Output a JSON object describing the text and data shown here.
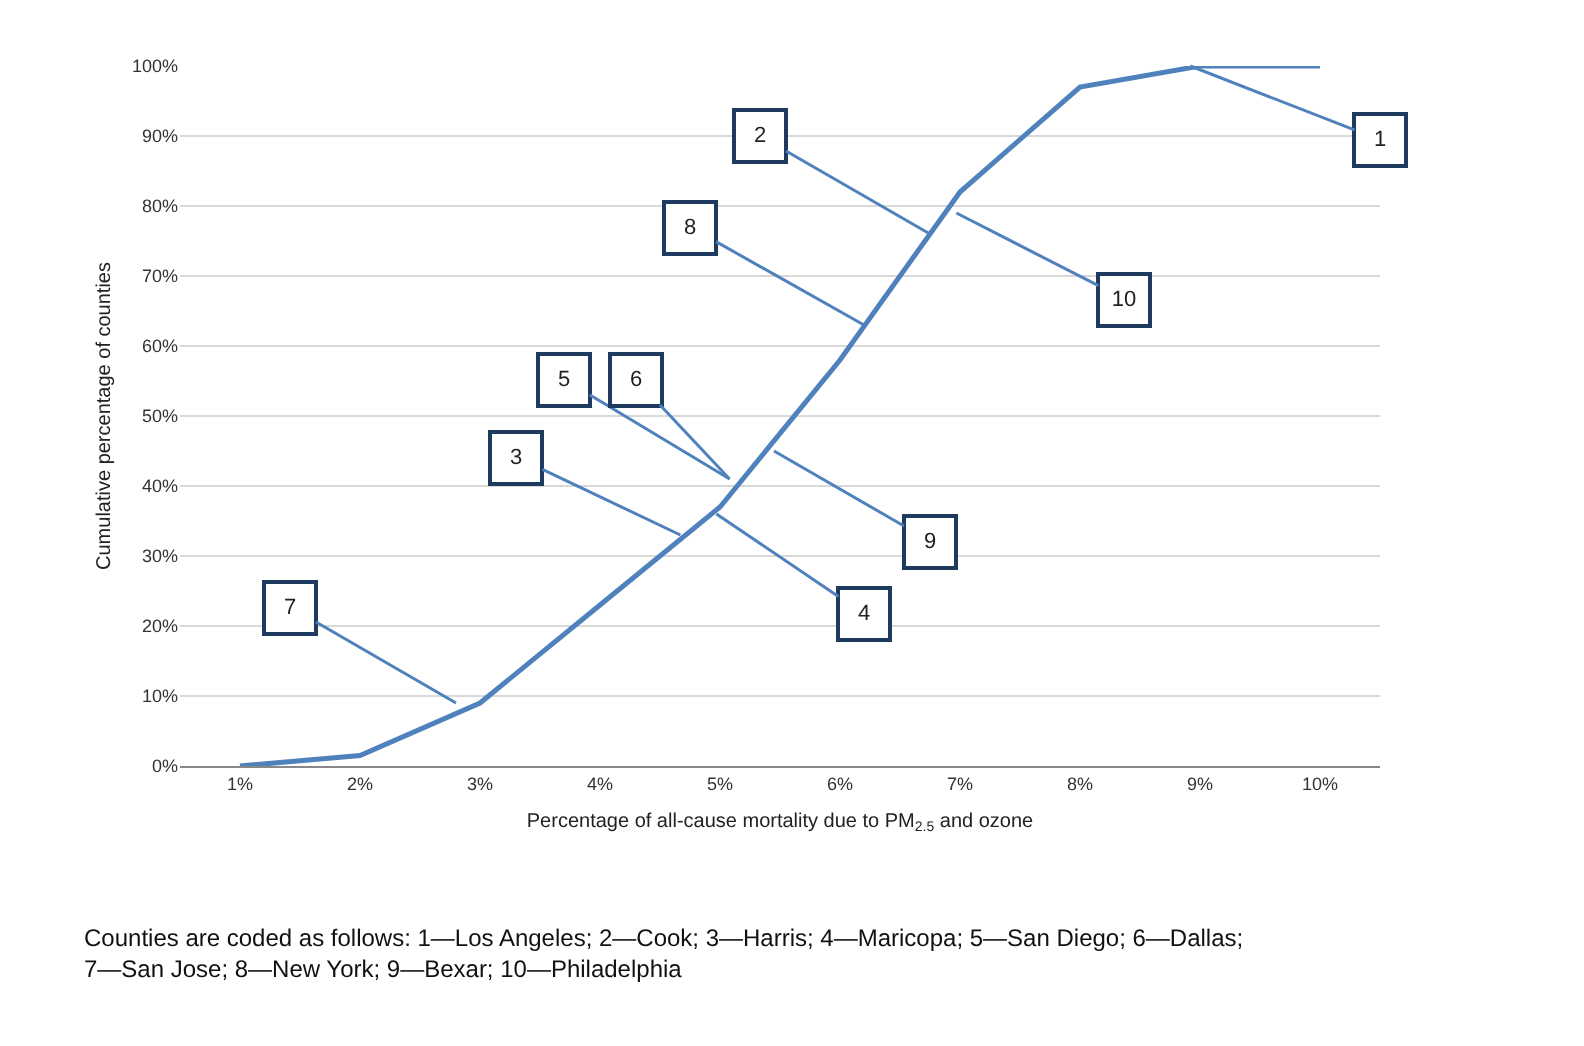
{
  "chart_data": {
    "type": "line",
    "xlabel": "Percentage of all-cause mortality due to PM$_{2.5}$ and ozone",
    "ylabel": "Cumulative percentage of counties",
    "x": [
      1,
      2,
      3,
      4,
      5,
      6,
      7,
      8,
      9,
      10
    ],
    "series": [
      {
        "color": "#4f81bd",
        "values": [
          0,
          1.5,
          9,
          23,
          37,
          58,
          82,
          97,
          100,
          100
        ]
      }
    ],
    "xlim": [
      0.5,
      10.5
    ],
    "xticks": [
      {
        "value": 1,
        "label": "1%"
      },
      {
        "value": 2,
        "label": "2%"
      },
      {
        "value": 3,
        "label": "3%"
      },
      {
        "value": 4,
        "label": "4%"
      },
      {
        "value": 5,
        "label": "5%"
      },
      {
        "value": 6,
        "label": "6%"
      },
      {
        "value": 7,
        "label": "7%"
      },
      {
        "value": 8,
        "label": "8%"
      },
      {
        "value": 9,
        "label": "9%"
      },
      {
        "value": 10,
        "label": "10%"
      }
    ],
    "ylim": [
      0,
      100
    ],
    "yticks": [
      {
        "value": 0,
        "label": "0%"
      },
      {
        "value": 10,
        "label": "10%"
      },
      {
        "value": 20,
        "label": "20%"
      },
      {
        "value": 30,
        "label": "30%"
      },
      {
        "value": 40,
        "label": "40%"
      },
      {
        "value": 50,
        "label": "50%"
      },
      {
        "value": 60,
        "label": "60%"
      },
      {
        "value": 70,
        "label": "70%"
      },
      {
        "value": 80,
        "label": "80%"
      },
      {
        "value": 90,
        "label": "90%"
      },
      {
        "value": 100,
        "label": "100%"
      }
    ],
    "grid": "y",
    "legend": false,
    "marker": "none",
    "line_style": "solid",
    "annotations": [
      {
        "text": "1",
        "x": 8.92,
        "y": 100
      },
      {
        "text": "2",
        "x": 6.75,
        "y": 76
      },
      {
        "text": "3",
        "x": 4.67,
        "y": 33
      },
      {
        "text": "4",
        "x": 4.97,
        "y": 36
      },
      {
        "text": "5",
        "x": 5.08,
        "y": 41
      },
      {
        "text": "6",
        "x": 5.08,
        "y": 41
      },
      {
        "text": "7",
        "x": 2.8,
        "y": 9
      },
      {
        "text": "8",
        "x": 6.2,
        "y": 63
      },
      {
        "text": "9",
        "x": 5.45,
        "y": 45
      },
      {
        "text": "10",
        "x": 6.97,
        "y": 79
      },
      "Counties are coded as follows: 1—Los Angeles; 2—Cook; 3—Harris; 4—Maricopa; 5—San Diego; 6—Dallas;\n7—San Jose; 8—New York; 9—Bexar; 10—Philadelphia"
    ]
  }
}
